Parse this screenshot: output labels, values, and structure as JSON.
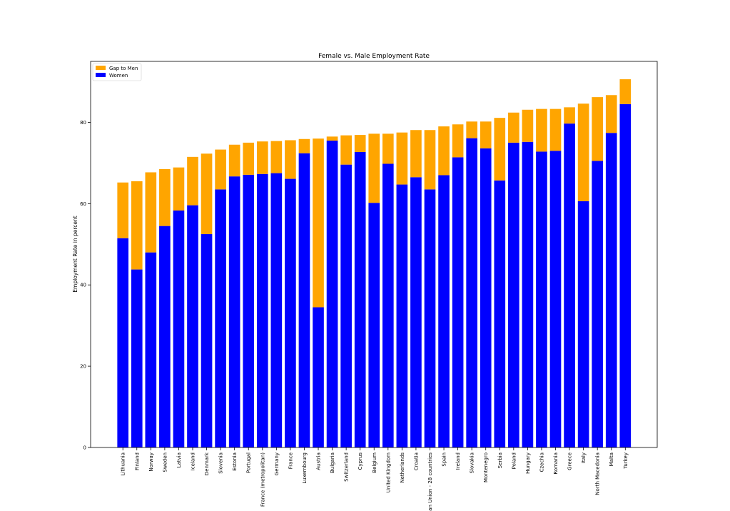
{
  "chart_data": {
    "type": "bar",
    "stacked": true,
    "title": "Female vs. Male Employment Rate",
    "xlabel": "",
    "ylabel": "Employment Rate in percent",
    "ylim": [
      0,
      95
    ],
    "yticks": [
      0,
      20,
      40,
      60,
      80
    ],
    "grid": false,
    "legend_position": "top-left",
    "categories": [
      "Lithuania",
      "Finland",
      "Norway",
      "Sweden",
      "Latvia",
      "Iceland",
      "Denmark",
      "Slovenia",
      "Estonia",
      "Portugal",
      "France (metropolitan)",
      "Germany",
      "France",
      "Luxembourg",
      "Austria",
      "Bulgaria",
      "Switzerland",
      "Cyprus",
      "Belgium",
      "United Kingdom",
      "Netherlands",
      "Croatia",
      "an Union - 28 countries",
      "Spain",
      "Ireland",
      "Slovakia",
      "Montenegro",
      "Serbia",
      "Poland",
      "Hungary",
      "Czechia",
      "Romania",
      "Greece",
      "Italy",
      "North Macedonia",
      "Malta",
      "Turkey"
    ],
    "series": [
      {
        "name": "Women",
        "color": "#0000ff",
        "values": [
          51.5,
          43.8,
          48.0,
          54.5,
          58.3,
          59.6,
          52.5,
          63.5,
          66.7,
          67.1,
          67.3,
          67.5,
          66.1,
          72.4,
          34.5,
          75.5,
          69.6,
          72.7,
          60.2,
          69.8,
          64.7,
          66.5,
          63.5,
          67.0,
          71.4,
          76.1,
          73.6,
          65.7,
          75.0,
          75.2,
          72.8,
          73.0,
          79.7,
          60.6,
          70.5,
          77.4,
          84.5
        ]
      },
      {
        "name": "Gap to Men",
        "color": "#ffa500",
        "values": [
          13.7,
          21.7,
          19.7,
          14.0,
          10.6,
          11.9,
          19.8,
          9.8,
          7.8,
          7.9,
          8.0,
          7.9,
          9.5,
          3.5,
          41.5,
          1.0,
          7.2,
          4.2,
          17.0,
          7.4,
          12.8,
          11.6,
          14.6,
          12.0,
          8.1,
          4.1,
          6.6,
          15.4,
          7.4,
          7.9,
          10.5,
          10.3,
          4.0,
          24.0,
          15.7,
          9.3,
          6.1
        ]
      }
    ],
    "legend": [
      "Gap to Men",
      "Women"
    ]
  }
}
